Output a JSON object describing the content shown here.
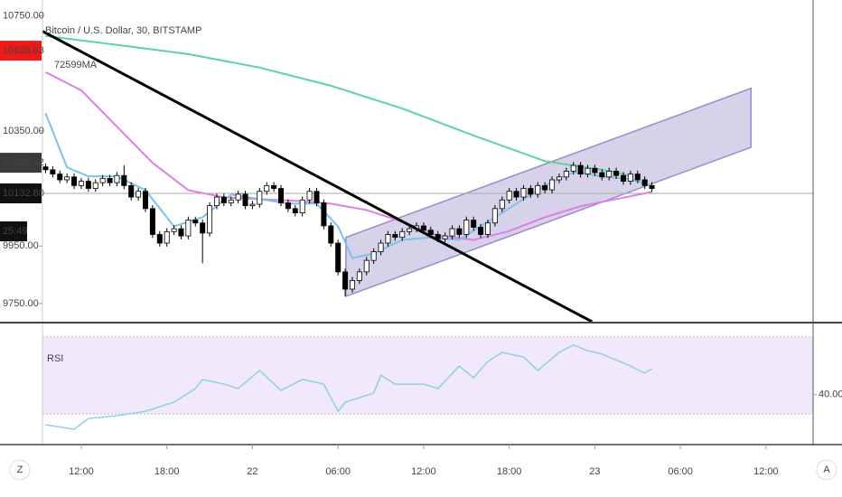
{
  "chart_data": [
    {
      "type": "candlestick",
      "title": "Bitcoin / U.S. Dollar, 30, BITSTAMP",
      "indicator_label": "72599MA",
      "up_color": "#ffffff",
      "down_color": "#000000",
      "open": [
        10225,
        10215,
        10200,
        10180,
        10190,
        10160,
        10175,
        10150,
        10170,
        10185,
        10170,
        10195,
        10160,
        10120,
        10140,
        10080,
        9990,
        9960,
        10000,
        10010,
        9985,
        10040,
        10030,
        9995,
        10090,
        10120,
        10100,
        10110,
        10130,
        10090,
        10095,
        10140,
        10160,
        10150,
        10100,
        10080,
        10065,
        10110,
        10140,
        10100,
        10020,
        9960,
        9860,
        9800,
        9830,
        9860,
        9900,
        9930,
        9960,
        9990,
        9980,
        10000,
        10010,
        10020,
        10005,
        9990,
        9975,
        9985,
        10010,
        9990,
        10040,
        10015,
        9990,
        10030,
        10080,
        10110,
        10140,
        10120,
        10150,
        10130,
        10160,
        10145,
        10180,
        10190,
        10210,
        10230,
        10200,
        10220,
        10205,
        10190,
        10210,
        10195,
        10175,
        10200,
        10180,
        10160
      ],
      "high": [
        10237,
        10227,
        10212,
        10202,
        10202,
        10187,
        10187,
        10182,
        10197,
        10197,
        10207,
        10230,
        10172,
        10152,
        10152,
        10092,
        10002,
        10012,
        10022,
        10022,
        10052,
        10052,
        10042,
        10102,
        10132,
        10132,
        10122,
        10142,
        10142,
        10107,
        10152,
        10172,
        10172,
        10162,
        10112,
        10092,
        10122,
        10152,
        10152,
        10112,
        10032,
        9972,
        9872,
        9842,
        9872,
        9912,
        9942,
        9972,
        10002,
        10002,
        10012,
        10022,
        10032,
        10032,
        10017,
        10002,
        9997,
        10022,
        10022,
        10052,
        10052,
        10027,
        10042,
        10092,
        10122,
        10152,
        10152,
        10162,
        10162,
        10172,
        10172,
        10192,
        10202,
        10222,
        10242,
        10242,
        10232,
        10232,
        10217,
        10222,
        10222,
        10207,
        10212,
        10212,
        10192,
        10172
      ],
      "low": [
        10203,
        10188,
        10168,
        10168,
        10148,
        10148,
        10138,
        10138,
        10158,
        10158,
        10158,
        10148,
        10108,
        10108,
        10068,
        9978,
        9948,
        9948,
        9988,
        9973,
        9973,
        10018,
        9890,
        9983,
        10078,
        10088,
        10088,
        10098,
        10078,
        10078,
        10083,
        10128,
        10138,
        10088,
        10068,
        10053,
        10053,
        10098,
        10088,
        10008,
        9948,
        9848,
        9775,
        9788,
        9818,
        9848,
        9888,
        9918,
        9948,
        9968,
        9968,
        9988,
        9998,
        9993,
        9978,
        9963,
        9963,
        9973,
        9978,
        9978,
        10003,
        9978,
        9978,
        10018,
        10068,
        10098,
        10108,
        10108,
        10118,
        10118,
        10133,
        10133,
        10168,
        10178,
        10198,
        10188,
        10188,
        10193,
        10178,
        10178,
        10183,
        10163,
        10163,
        10168,
        10148,
        10138
      ],
      "close": [
        10215,
        10200,
        10180,
        10190,
        10160,
        10175,
        10150,
        10170,
        10185,
        10170,
        10195,
        10160,
        10120,
        10140,
        10080,
        9990,
        9960,
        10000,
        10010,
        9985,
        10040,
        10030,
        9995,
        10090,
        10120,
        10100,
        10110,
        10130,
        10090,
        10095,
        10140,
        10160,
        10150,
        10100,
        10080,
        10065,
        10110,
        10140,
        10100,
        10020,
        9960,
        9860,
        9800,
        9830,
        9860,
        9900,
        9930,
        9960,
        9990,
        9980,
        10000,
        10010,
        10020,
        10005,
        9990,
        9975,
        9985,
        10010,
        9990,
        10040,
        10015,
        9990,
        10030,
        10080,
        10110,
        10140,
        10120,
        10150,
        10130,
        10160,
        10145,
        10180,
        10190,
        10210,
        10230,
        10200,
        10220,
        10205,
        10190,
        10210,
        10195,
        10175,
        10200,
        10180,
        10160,
        10150
      ],
      "lines": [
        {
          "color": "#5fd49a",
          "x": [
            0,
            10,
            20,
            30,
            40,
            50,
            60,
            70,
            80,
            82
          ],
          "values": [
            10680,
            10649,
            10617,
            10570,
            10507,
            10428,
            10334,
            10245,
            10207,
            10192
          ]
        },
        {
          "color": "#df7fe6",
          "x": [
            0,
            5,
            10,
            15,
            20,
            25,
            30,
            35,
            40,
            45,
            50,
            55,
            60,
            65,
            70,
            75,
            80,
            85
          ],
          "values": [
            10554,
            10491,
            10365,
            10239,
            10144,
            10119,
            10113,
            10107,
            10097,
            10075,
            10034,
            9987,
            9971,
            10002,
            10050,
            10088,
            10113,
            10138
          ]
        },
        {
          "color": "#7cc3e6",
          "x": [
            0,
            3,
            6,
            10,
            14,
            18,
            22,
            26,
            30,
            34,
            38,
            41,
            43,
            46,
            50,
            54,
            58,
            62,
            66,
            70,
            74,
            78,
            82,
            85
          ],
          "values": [
            10412,
            10223,
            10192,
            10192,
            10144,
            10018,
            10050,
            10129,
            10113,
            10097,
            10097,
            10018,
            9908,
            9924,
            9971,
            9980,
            9971,
            10034,
            10097,
            10160,
            10207,
            10192,
            10182,
            10160
          ]
        }
      ],
      "trend_line": {
        "color": "#000000",
        "x": [
          -0.4,
          76.6
        ],
        "values": [
          10696,
          9687
        ]
      },
      "channel": {
        "color": "#9a8cc8",
        "x": [
          42.1,
          98.9
        ],
        "lower": [
          9775,
          10293
        ],
        "upper": [
          9980,
          10498
        ]
      },
      "price_labels": [
        {
          "value": 10628.83,
          "color": "#f01818"
        },
        {
          "value": 10239.32,
          "color": "#3a3a3a"
        },
        {
          "value": {
            "value": 10132.8,
            "label": "10132.80"
          },
          "color": "#111111"
        }
      ],
      "last_price_line": {
        "value": 10132.8,
        "color": "#aaaaaa"
      },
      "countdown": "25:49",
      "ylim": [
        9690,
        10805
      ],
      "yticks": [
        {
          "value": 9750,
          "label": "9750.00"
        },
        {
          "value": 9950,
          "label": "9950.00"
        },
        {
          "value": 10350,
          "label": "10350.00"
        },
        {
          "value": 10750,
          "label": "10750.00"
        }
      ],
      "xlim": [
        -0.44,
        107.6
      ],
      "xticks": [
        {
          "value": 5,
          "label": "12:00"
        },
        {
          "value": 17,
          "label": "18:00"
        },
        {
          "value": 29,
          "label": "22"
        },
        {
          "value": 41,
          "label": "06:00"
        },
        {
          "value": 53,
          "label": "12:00"
        },
        {
          "value": 65,
          "label": "18:00"
        },
        {
          "value": 77,
          "label": "23"
        },
        {
          "value": 89,
          "label": "06:00"
        },
        {
          "value": 101,
          "label": "12:00"
        }
      ]
    },
    {
      "type": "line",
      "title": "RSI",
      "color": "#8fd0e2",
      "x": [
        0,
        4,
        6,
        10,
        14,
        18,
        21,
        22,
        25,
        27,
        30,
        33,
        36,
        39,
        41,
        42,
        46,
        47,
        49,
        53,
        55,
        58,
        60,
        62,
        64,
        67,
        69,
        72,
        74,
        76,
        78,
        82,
        84,
        85
      ],
      "values": [
        24.4,
        22,
        27.6,
        29.1,
        31.4,
        36.1,
        43.2,
        47.9,
        45.5,
        43.2,
        52.6,
        42.2,
        47.9,
        45.5,
        31.4,
        36.1,
        40.8,
        50.2,
        45.5,
        45.5,
        43.2,
        54.9,
        48.8,
        57.3,
        62,
        59.6,
        52.6,
        62,
        65.8,
        62.9,
        61.1,
        54.9,
        51.2,
        53.5
      ],
      "band": [
        30,
        70
      ],
      "band_color": "#f1e8fc",
      "ylim": [
        15,
        77
      ],
      "yticks": [
        {
          "value": 40,
          "label": "40.00"
        }
      ]
    }
  ],
  "toolbar": {
    "left": "Z",
    "right": "A"
  }
}
